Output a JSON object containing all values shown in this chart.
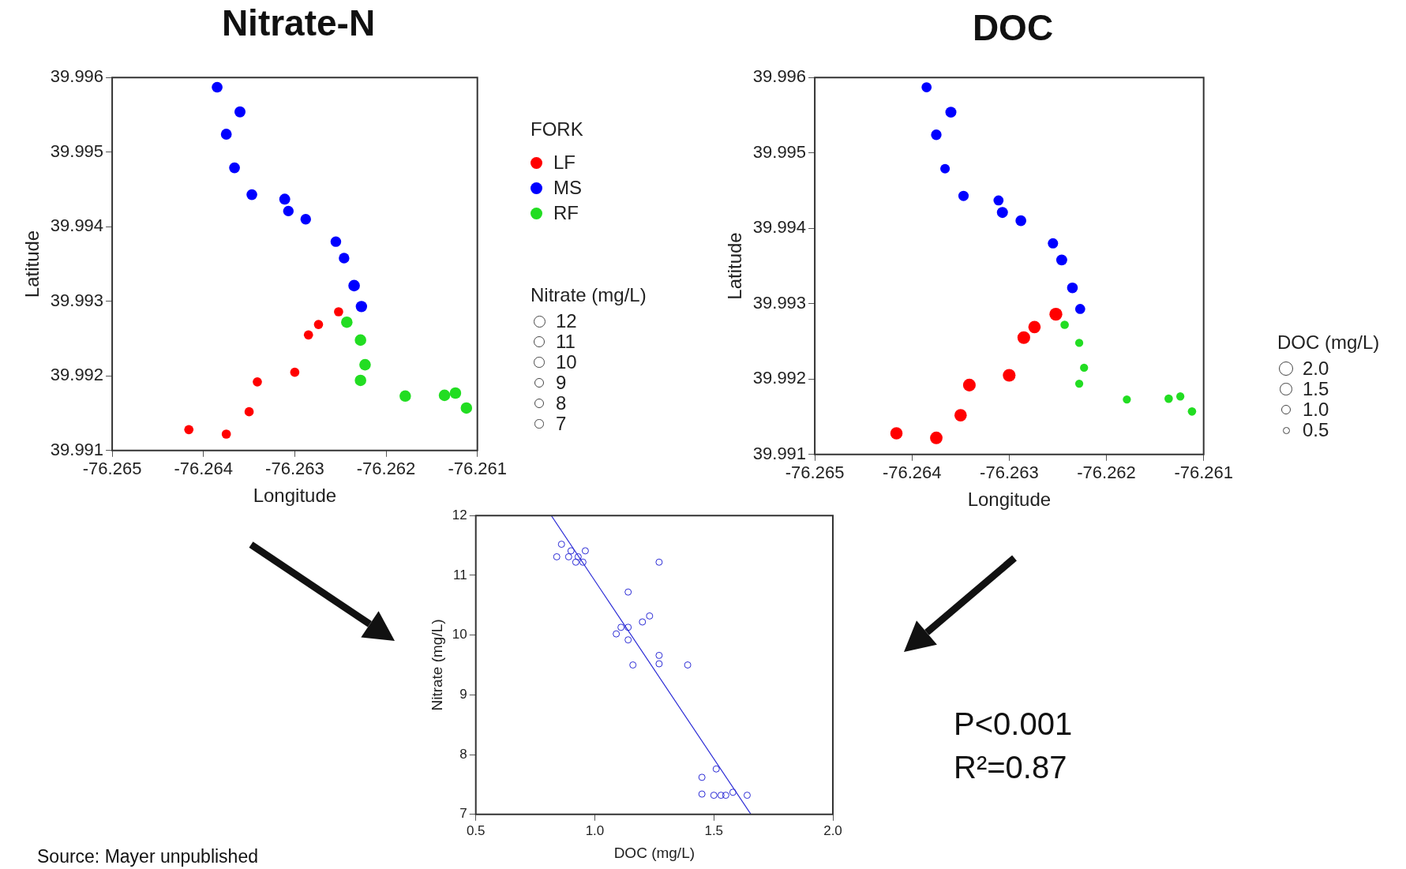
{
  "chart_data": [
    {
      "type": "bubble",
      "title": "Nitrate-N",
      "xlabel": "Longitude",
      "ylabel": "Latitude",
      "legend_title": "FORK",
      "legend": "right",
      "marker": "circle",
      "grid": false,
      "xlim": [
        -76.265,
        -76.261
      ],
      "xticks": [
        -76.265,
        -76.264,
        -76.263,
        -76.262,
        -76.261
      ],
      "ylim": [
        39.991,
        39.996
      ],
      "yticks": [
        39.991,
        39.992,
        39.993,
        39.994,
        39.995,
        39.996
      ],
      "size_legend": [
        12,
        11,
        10,
        9,
        8,
        7
      ],
      "annotations": [
        "Nitrate (mg/L)"
      ],
      "series": [
        {
          "name": "LF",
          "color": "#ff0000",
          "x": [
            -76.26252,
            -76.26274,
            -76.26285,
            -76.263,
            -76.26341,
            -76.2635,
            -76.26416,
            -76.26375
          ],
          "values": [
            39.99286,
            39.99269,
            39.99255,
            39.99205,
            39.99192,
            39.99152,
            39.99128,
            39.99122
          ],
          "sizes": [
            7.3,
            7.3,
            7.3,
            7.3,
            7.3,
            7.3,
            7.3,
            7.3
          ]
        },
        {
          "name": "MS",
          "color": "#0000ff",
          "x": [
            -76.26385,
            -76.2636,
            -76.26375,
            -76.26366,
            -76.26347,
            -76.26311,
            -76.26307,
            -76.26288,
            -76.26255,
            -76.26246,
            -76.26235,
            -76.26227
          ],
          "values": [
            39.99587,
            39.99554,
            39.99524,
            39.99479,
            39.99443,
            39.99437,
            39.99421,
            39.9941,
            39.9938,
            39.99358,
            39.99321,
            39.99293
          ],
          "sizes": [
            10,
            10.5,
            10.2,
            10,
            9.9,
            10.2,
            9.5,
            9.6,
            9.6,
            9.6,
            11.5,
            11
          ]
        },
        {
          "name": "RF",
          "color": "#22dd22",
          "x": [
            -76.26243,
            -76.26228,
            -76.26223,
            -76.26228,
            -76.26179,
            -76.26136,
            -76.26124,
            -76.26112
          ],
          "values": [
            39.99272,
            39.99248,
            39.99215,
            39.99194,
            39.99173,
            39.99174,
            39.99177,
            39.99157
          ],
          "sizes": [
            11.3,
            11.4,
            11.4,
            11.4,
            11.3,
            11.3,
            11.3,
            11.3
          ]
        }
      ]
    },
    {
      "type": "bubble",
      "title": "DOC",
      "xlabel": "Longitude",
      "ylabel": "Latitude",
      "legend_title": "DOC (mg/L)",
      "legend": "right",
      "marker": "circle",
      "grid": false,
      "xlim": [
        -76.265,
        -76.261
      ],
      "xticks": [
        -76.265,
        -76.264,
        -76.263,
        -76.262,
        -76.261
      ],
      "ylim": [
        39.991,
        39.996
      ],
      "yticks": [
        39.991,
        39.992,
        39.993,
        39.994,
        39.995,
        39.996
      ],
      "size_legend": [
        {
          "value": 2,
          "label": "2.0"
        },
        {
          "value": 1.5,
          "label": "1.5"
        },
        {
          "value": 1,
          "label": "1.0"
        },
        {
          "value": 0.5,
          "label": "0.5"
        }
      ],
      "series": [
        {
          "color": "#ff0000",
          "x": [
            -76.26252,
            -76.26274,
            -76.26285,
            -76.263,
            -76.26341,
            -76.2635,
            -76.26416,
            -76.26375
          ],
          "values": [
            39.99286,
            39.99269,
            39.99255,
            39.99205,
            39.99192,
            39.99152,
            39.99128,
            39.99122
          ],
          "sizes": [
            1.65,
            1.5,
            1.6,
            1.6,
            1.6,
            1.5,
            1.5,
            1.55
          ]
        },
        {
          "color": "#0000ff",
          "x": [
            -76.26385,
            -76.2636,
            -76.26375,
            -76.26366,
            -76.26347,
            -76.26311,
            -76.26307,
            -76.26288,
            -76.26255,
            -76.26246,
            -76.26235,
            -76.26227
          ],
          "values": [
            39.99587,
            39.99554,
            39.99524,
            39.99479,
            39.99443,
            39.99437,
            39.99421,
            39.9941,
            39.9938,
            39.99358,
            39.99321,
            39.99293
          ],
          "sizes": [
            1,
            1.2,
            1.1,
            0.9,
            1.05,
            1,
            1.2,
            1.15,
            1.05,
            1.2,
            1.15,
            1
          ]
        },
        {
          "color": "#22dd22",
          "x": [
            -76.26243,
            -76.26228,
            -76.26223,
            -76.26228,
            -76.26179,
            -76.26136,
            -76.26124,
            -76.26112
          ],
          "values": [
            39.99272,
            39.99248,
            39.99215,
            39.99194,
            39.99173,
            39.99174,
            39.99177,
            39.99157
          ],
          "sizes": [
            0.7,
            0.65,
            0.65,
            0.65,
            0.65,
            0.7,
            0.65,
            0.7
          ]
        }
      ]
    },
    {
      "type": "scatter",
      "xlabel": "DOC (mg/L)",
      "ylabel": "Nitrate (mg/L)",
      "legend": false,
      "grid": false,
      "marker": "circle",
      "xlim": [
        0.5,
        2
      ],
      "xticks": [
        {
          "value": 0.5,
          "label": "0.5"
        },
        {
          "value": 1,
          "label": "1.0"
        },
        {
          "value": 1.5,
          "label": "1.5"
        },
        {
          "value": 2,
          "label": "2.0"
        }
      ],
      "ylim": [
        7,
        12
      ],
      "yticks": [
        7,
        8,
        9,
        10,
        11,
        12
      ],
      "annotations": [
        "P<0.001",
        "R²=0.87",
        "Source: Mayer unpublished"
      ],
      "series": [
        {
          "color": "#2b2bd6",
          "x": [
            0.86,
            0.84,
            0.89,
            0.9,
            0.93,
            0.92,
            0.95,
            0.96,
            1.27,
            1.14,
            1.23,
            1.2,
            1.11,
            1.14,
            1.09,
            1.14,
            1.16,
            1.27,
            1.27,
            1.39,
            1.51,
            1.45,
            1.45,
            1.5,
            1.53,
            1.55,
            1.58,
            1.64
          ],
          "values": [
            11.52,
            11.31,
            11.31,
            11.41,
            11.31,
            11.22,
            11.22,
            11.41,
            11.22,
            10.72,
            10.32,
            10.22,
            10.13,
            10.13,
            10.02,
            9.92,
            9.5,
            9.66,
            9.52,
            9.5,
            7.76,
            7.62,
            7.34,
            7.32,
            7.32,
            7.32,
            7.37,
            7.32
          ]
        },
        {
          "type": "line",
          "color": "#2b2bd6",
          "marker": "none",
          "x": [
            0.817,
            1.656
          ],
          "values": [
            12,
            7
          ]
        }
      ]
    }
  ]
}
